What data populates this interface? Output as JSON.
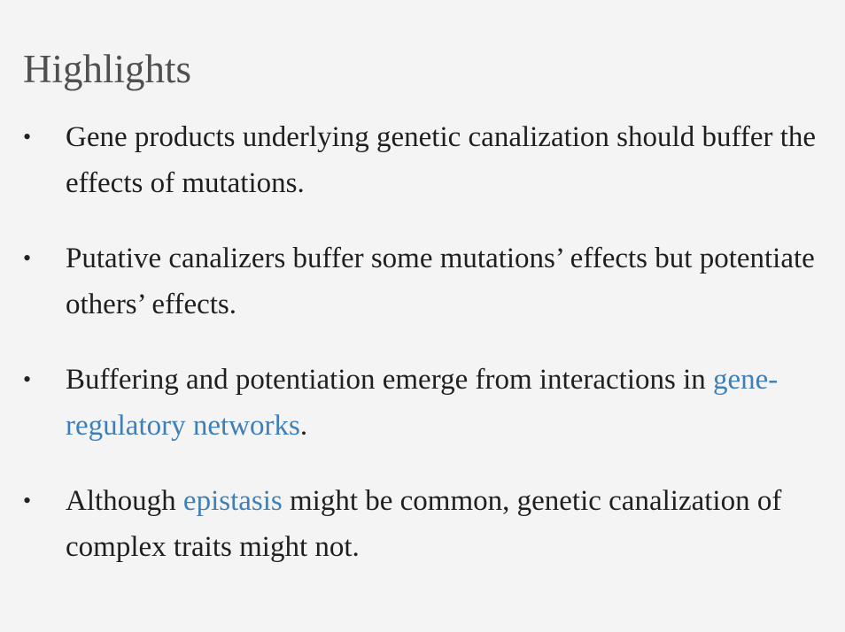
{
  "heading": "Highlights",
  "bullet_char": "•",
  "items": [
    {
      "before": "Gene products underlying genetic canalization should buffer the effects of mutations."
    },
    {
      "before": "Putative canalizers buffer some mutations’ effects but potentiate others’ effects."
    },
    {
      "before": "Buffering and potentiation emerge from interactions in ",
      "link": "gene-regulatory networks",
      "after": "."
    },
    {
      "before": "Although ",
      "link": "epistasis",
      "after": " might be common, genetic canalization of complex traits might not."
    }
  ],
  "colors": {
    "background": "#f4f4f4",
    "heading": "#505050",
    "text": "#1f1f1f",
    "link": "#3f7fb7"
  }
}
